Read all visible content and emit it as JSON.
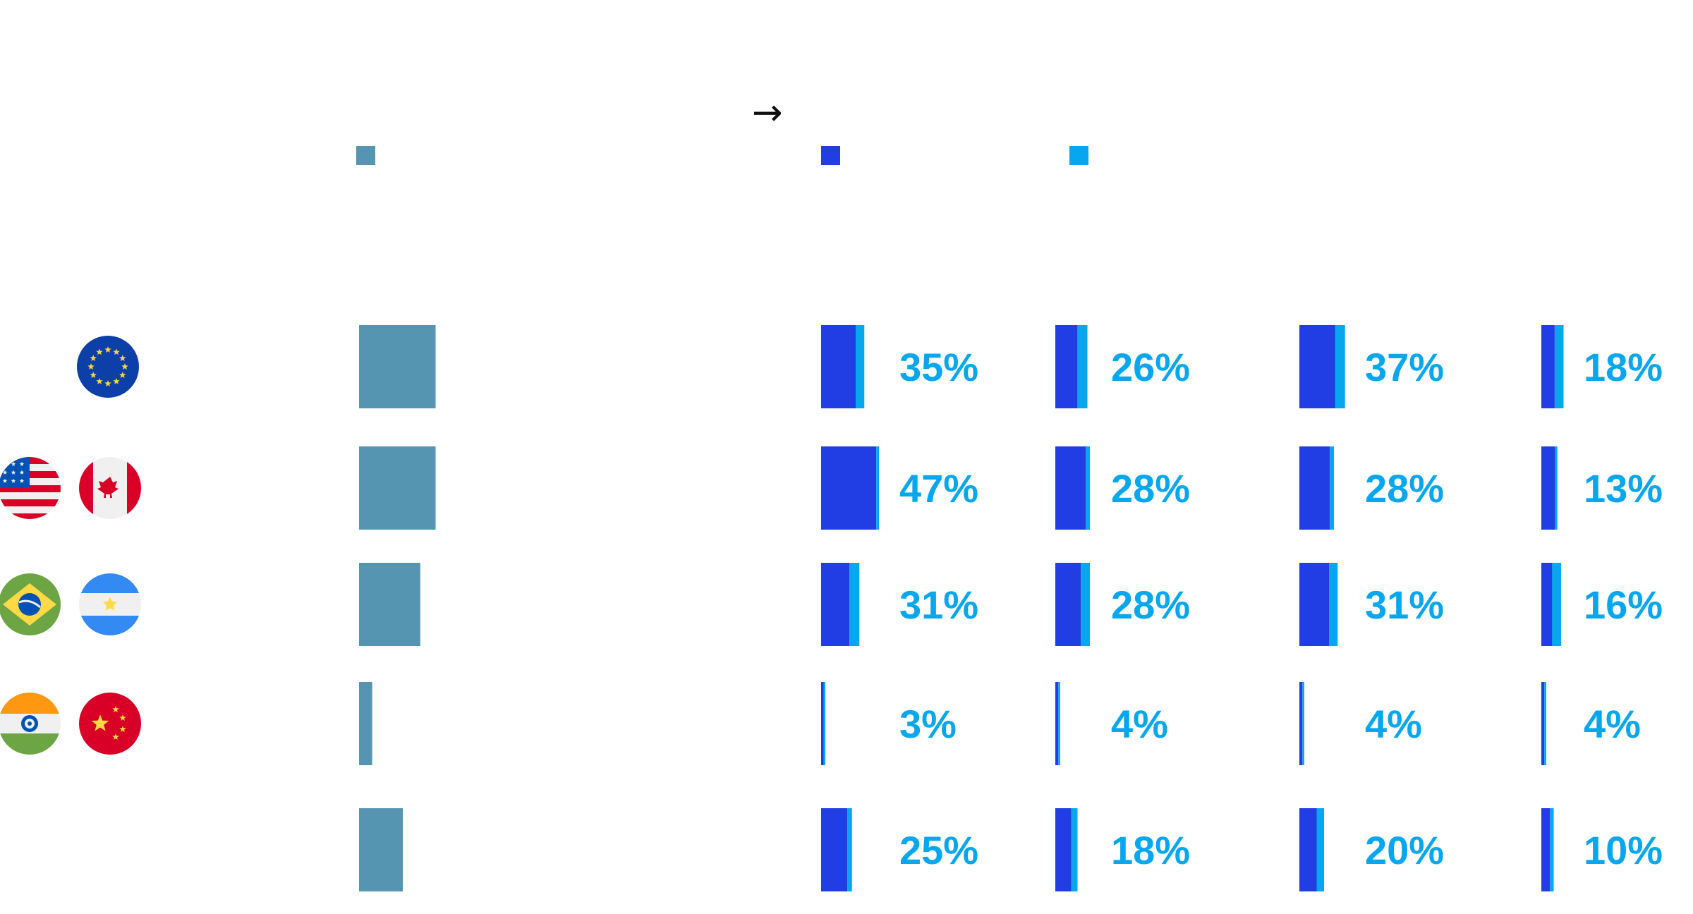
{
  "chart_data": {
    "type": "bar",
    "header_arrow": "→",
    "legend": [
      {
        "key": "base",
        "color": "#5595b2"
      },
      {
        "key": "dark",
        "color": "#213de4"
      },
      {
        "key": "light",
        "color": "#06a7ee"
      }
    ],
    "rows": [
      {
        "flags": [
          "eu-flag-icon"
        ],
        "base": 35,
        "values": [
          "35%",
          "26%",
          "37%",
          "18%"
        ],
        "dark": [
          80,
          69,
          78,
          60
        ],
        "light": [
          20,
          31,
          22,
          40
        ]
      },
      {
        "flags": [
          "usa-flag-icon",
          "canada-flag-icon"
        ],
        "base": 35,
        "values": [
          "47%",
          "28%",
          "28%",
          "13%"
        ],
        "dark": [
          95,
          88,
          88,
          85
        ],
        "light": [
          5,
          12,
          12,
          15
        ]
      },
      {
        "flags": [
          "brazil-flag-icon",
          "argentina-flag-icon"
        ],
        "base": 28,
        "values": [
          "31%",
          "28%",
          "31%",
          "16%"
        ],
        "dark": [
          74,
          74,
          78,
          55
        ],
        "light": [
          26,
          26,
          22,
          45
        ]
      },
      {
        "flags": [
          "india-flag-icon",
          "china-flag-icon"
        ],
        "base": 6,
        "values": [
          "3%",
          "4%",
          "4%",
          "4%"
        ],
        "dark": [
          60,
          60,
          60,
          60
        ],
        "light": [
          40,
          40,
          40,
          40
        ]
      },
      {
        "flags": [],
        "base": 20,
        "values": [
          "25%",
          "18%",
          "20%",
          "10%"
        ],
        "dark": [
          85,
          72,
          70,
          70
        ],
        "light": [
          15,
          28,
          30,
          30
        ]
      }
    ],
    "colors": {
      "base": "#5595b2",
      "dark": "#213de4",
      "light": "#06a7ee",
      "label": "#06a7ee"
    }
  }
}
